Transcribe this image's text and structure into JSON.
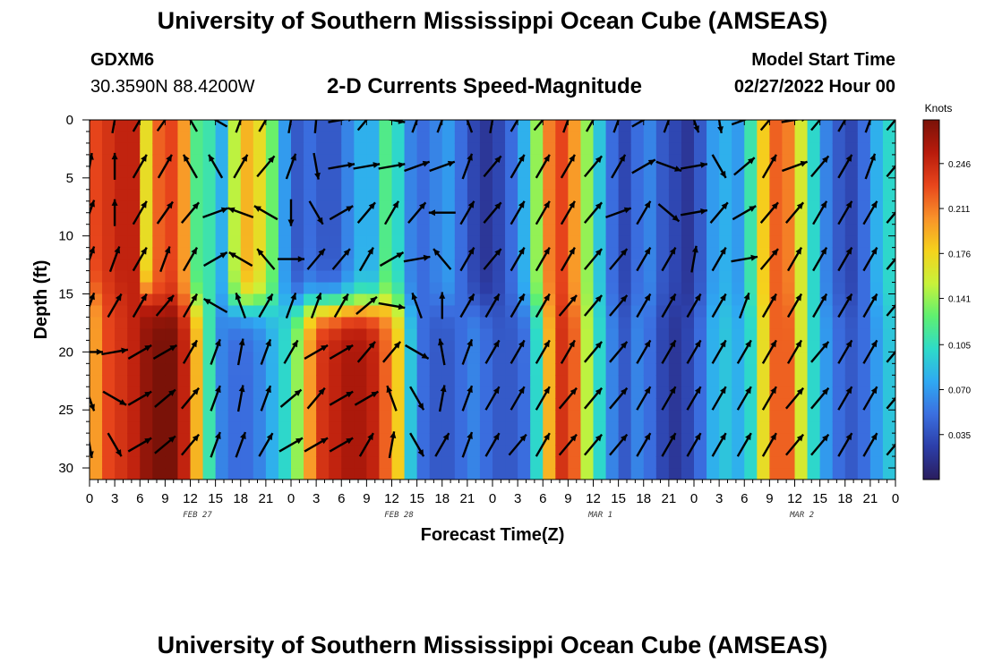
{
  "header": {
    "title": "University of Southern Mississippi Ocean Cube (AMSEAS)",
    "station_id": "GDXM6",
    "station_coords": "30.3590N  88.4200W",
    "subtitle": "2-D Currents Speed-Magnitude",
    "model_start_label": "Model Start Time",
    "model_start_value": "02/27/2022 Hour 00"
  },
  "footer": {
    "title": "University of Southern Mississippi Ocean Cube (AMSEAS)"
  },
  "chart_data": {
    "type": "heatmap",
    "title": "2-D Currents Speed-Magnitude",
    "xlabel": "Forecast Time(Z)",
    "ylabel": "Depth (ft)",
    "xlim": [
      0,
      96
    ],
    "ylim": [
      31,
      0
    ],
    "x_tick_labels": [
      "0",
      "3",
      "6",
      "9",
      "12",
      "15",
      "18",
      "21",
      "0",
      "3",
      "6",
      "9",
      "12",
      "15",
      "18",
      "21",
      "0",
      "3",
      "6",
      "9",
      "12",
      "15",
      "18",
      "21",
      "0",
      "3",
      "6",
      "9",
      "12",
      "15",
      "18",
      "21",
      "0"
    ],
    "date_labels": [
      {
        "label": "FEB 27",
        "hour": 12
      },
      {
        "label": "FEB 28",
        "hour": 36
      },
      {
        "label": "MAR 1",
        "hour": 60
      },
      {
        "label": "MAR 2",
        "hour": 84
      }
    ],
    "y_tick_labels": [
      "0",
      "5",
      "10",
      "15",
      "20",
      "25",
      "30"
    ],
    "y_ticks": [
      0,
      5,
      10,
      15,
      20,
      25,
      30
    ],
    "colorbar": {
      "unit": "Knots",
      "min": 0.0,
      "max": 0.28,
      "tick_labels": [
        "0.246",
        "0.211",
        "0.176",
        "0.141",
        "0.105",
        "0.070",
        "0.035"
      ],
      "tick_values": [
        0.246,
        0.211,
        0.176,
        0.141,
        0.105,
        0.07,
        0.035
      ],
      "colors": [
        "#2a1d5e",
        "#2c3ea8",
        "#3b6fe0",
        "#2fa9f2",
        "#2edbc8",
        "#5ff070",
        "#c8f23a",
        "#f5d21c",
        "#f8922a",
        "#e8461c",
        "#b81b0c",
        "#7a1208"
      ]
    },
    "speed_profile": {
      "hours": [
        0,
        1.5,
        3,
        4.5,
        6,
        7.5,
        9,
        10.5,
        12,
        13.5,
        15,
        16.5,
        18,
        19.5,
        21,
        22.5,
        24,
        25.5,
        27,
        28.5,
        30,
        31.5,
        33,
        34.5,
        36,
        37.5,
        39,
        40.5,
        42,
        43.5,
        45,
        46.5,
        48,
        49.5,
        51,
        52.5,
        54,
        55.5,
        57,
        58.5,
        60,
        61.5,
        63,
        64.5,
        66,
        67.5,
        69,
        70.5,
        72,
        73.5,
        75,
        76.5,
        78,
        79.5,
        81,
        82.5,
        84,
        85.5,
        87,
        88.5,
        90,
        91.5,
        93,
        94.5,
        96
      ],
      "surface_knots": [
        0.23,
        0.24,
        0.25,
        0.25,
        0.17,
        0.22,
        0.23,
        0.2,
        0.12,
        0.11,
        0.08,
        0.15,
        0.19,
        0.17,
        0.13,
        0.07,
        0.04,
        0.05,
        0.04,
        0.04,
        0.06,
        0.08,
        0.08,
        0.12,
        0.1,
        0.06,
        0.05,
        0.06,
        0.07,
        0.05,
        0.03,
        0.02,
        0.03,
        0.05,
        0.08,
        0.14,
        0.21,
        0.23,
        0.2,
        0.14,
        0.09,
        0.05,
        0.03,
        0.05,
        0.06,
        0.04,
        0.03,
        0.02,
        0.04,
        0.07,
        0.08,
        0.07,
        0.11,
        0.18,
        0.22,
        0.21,
        0.16,
        0.1,
        0.06,
        0.04,
        0.03,
        0.05,
        0.08,
        0.1,
        0.13
      ],
      "deep_knots": [
        0.2,
        0.23,
        0.24,
        0.25,
        0.27,
        0.28,
        0.28,
        0.25,
        0.19,
        0.11,
        0.06,
        0.05,
        0.05,
        0.06,
        0.08,
        0.1,
        0.14,
        0.2,
        0.24,
        0.25,
        0.26,
        0.26,
        0.25,
        0.22,
        0.18,
        0.09,
        0.05,
        0.04,
        0.04,
        0.05,
        0.06,
        0.05,
        0.04,
        0.04,
        0.05,
        0.1,
        0.19,
        0.24,
        0.22,
        0.15,
        0.1,
        0.06,
        0.04,
        0.06,
        0.05,
        0.03,
        0.02,
        0.03,
        0.05,
        0.08,
        0.09,
        0.08,
        0.1,
        0.17,
        0.22,
        0.22,
        0.16,
        0.1,
        0.07,
        0.05,
        0.04,
        0.05,
        0.07,
        0.09,
        0.1
      ],
      "transition_depth_ft": [
        15,
        15,
        15,
        15,
        15,
        16,
        16,
        16,
        16,
        16,
        16,
        16,
        16,
        16,
        16,
        16,
        16,
        16,
        16,
        16,
        16,
        16,
        16,
        16,
        16,
        16,
        16,
        16,
        16,
        16,
        16,
        16,
        16,
        16,
        16,
        16,
        16,
        16,
        16,
        16,
        16,
        16,
        16,
        16,
        16,
        16,
        16,
        16,
        16,
        16,
        16,
        16,
        16,
        16,
        16,
        16,
        16,
        16,
        16,
        16,
        16,
        16,
        16,
        16,
        16
      ]
    },
    "vectors": {
      "hours": [
        0,
        3,
        6,
        9,
        12,
        15,
        18,
        21,
        24,
        27,
        30,
        33,
        36,
        39,
        42,
        45,
        48,
        51,
        54,
        57,
        60,
        63,
        66,
        69,
        72,
        75,
        78,
        81,
        84,
        87,
        90,
        93,
        96
      ],
      "depths_ft": [
        0,
        4,
        8,
        12,
        16,
        20,
        24,
        28
      ],
      "direction_deg_from_north": [
        [
          20,
          10,
          30,
          35,
          330,
          300,
          20,
          30,
          10,
          5,
          80,
          40,
          100,
          20,
          20,
          340,
          10,
          30,
          40,
          20,
          30,
          20,
          60,
          20,
          160,
          170,
          70,
          40,
          80,
          40,
          30,
          20,
          40
        ],
        [
          10,
          0,
          30,
          30,
          330,
          330,
          30,
          40,
          20,
          170,
          80,
          80,
          80,
          70,
          70,
          20,
          40,
          30,
          30,
          30,
          40,
          30,
          60,
          110,
          80,
          150,
          50,
          30,
          70,
          40,
          30,
          20,
          40
        ],
        [
          20,
          0,
          30,
          35,
          40,
          70,
          290,
          300,
          180,
          150,
          60,
          40,
          30,
          40,
          270,
          30,
          40,
          30,
          30,
          30,
          40,
          70,
          30,
          130,
          80,
          40,
          60,
          40,
          40,
          30,
          30,
          30,
          40
        ],
        [
          20,
          20,
          30,
          20,
          30,
          60,
          300,
          320,
          90,
          40,
          40,
          30,
          60,
          80,
          320,
          30,
          40,
          30,
          30,
          30,
          40,
          40,
          30,
          30,
          10,
          30,
          80,
          40,
          30,
          30,
          30,
          30,
          40
        ],
        [
          20,
          30,
          30,
          40,
          30,
          300,
          340,
          30,
          20,
          20,
          30,
          50,
          100,
          340,
          0,
          30,
          30,
          30,
          30,
          40,
          40,
          40,
          30,
          30,
          30,
          30,
          20,
          30,
          30,
          30,
          30,
          30,
          40
        ],
        [
          90,
          80,
          60,
          60,
          30,
          20,
          10,
          20,
          30,
          60,
          60,
          40,
          40,
          120,
          350,
          20,
          30,
          30,
          30,
          30,
          40,
          40,
          30,
          30,
          30,
          30,
          30,
          30,
          30,
          40,
          30,
          30,
          40
        ],
        [
          160,
          120,
          60,
          50,
          40,
          20,
          10,
          20,
          50,
          40,
          60,
          60,
          340,
          150,
          10,
          20,
          30,
          30,
          30,
          40,
          40,
          40,
          30,
          30,
          30,
          30,
          30,
          30,
          40,
          40,
          30,
          30,
          40
        ],
        [
          170,
          150,
          60,
          50,
          40,
          20,
          20,
          30,
          60,
          60,
          60,
          30,
          10,
          150,
          30,
          20,
          30,
          40,
          30,
          40,
          40,
          40,
          30,
          30,
          30,
          30,
          30,
          30,
          40,
          40,
          30,
          30,
          40
        ]
      ]
    }
  }
}
